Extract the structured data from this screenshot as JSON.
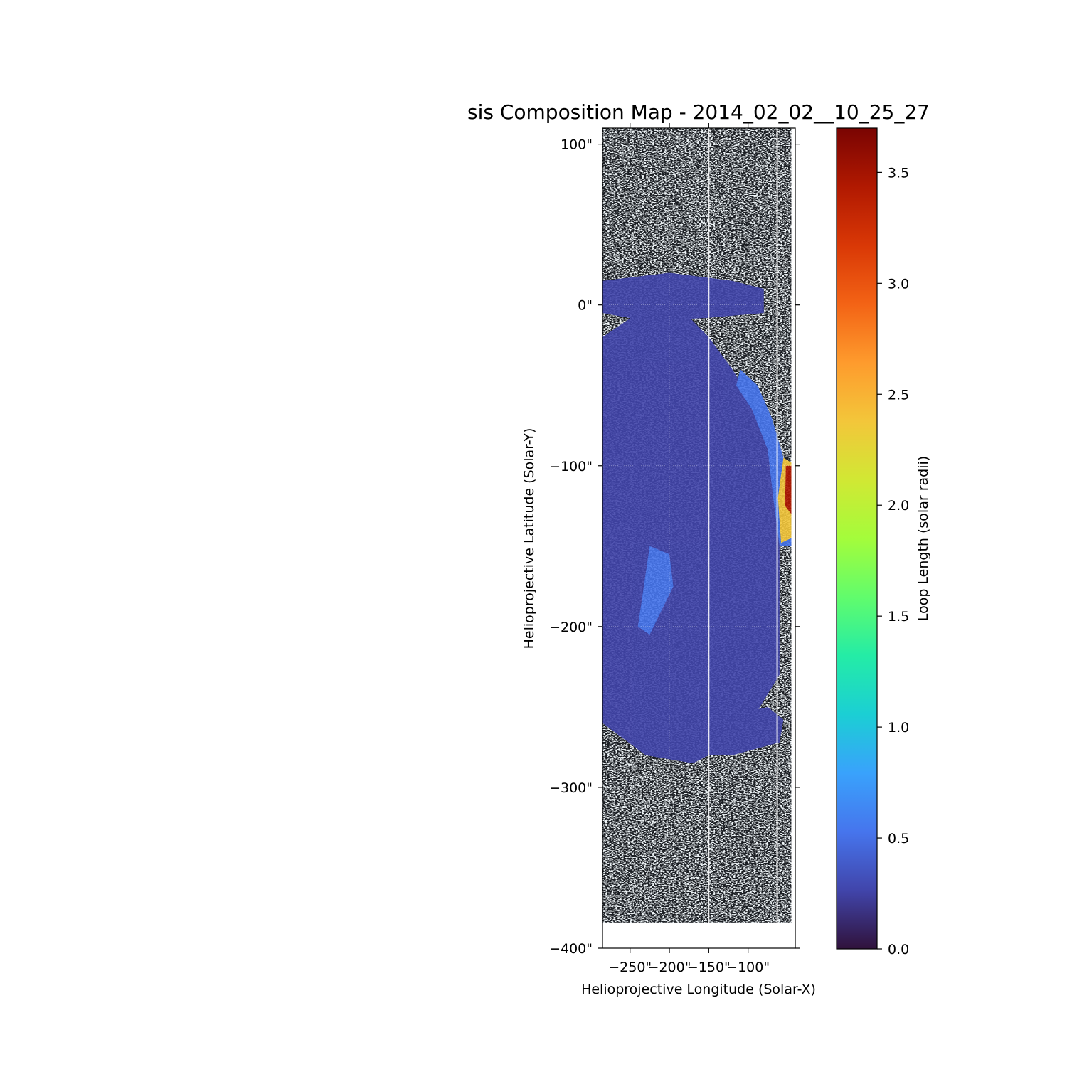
{
  "chart_data": {
    "type": "heatmap",
    "title": "sis Composition Map - 2014_02_02__10_25_27",
    "xlabel": "Helioprojective Longitude (Solar-X)",
    "ylabel": "Helioprojective Latitude (Solar-Y)",
    "xlim": [
      -285,
      -40
    ],
    "ylim": [
      -400,
      110
    ],
    "x_ticks": [
      {
        "value": -250,
        "label": "−250\""
      },
      {
        "value": -200,
        "label": "−200\""
      },
      {
        "value": -150,
        "label": "−150\""
      },
      {
        "value": -100,
        "label": "−100\""
      }
    ],
    "y_ticks": [
      {
        "value": 100,
        "label": "100\""
      },
      {
        "value": 0,
        "label": "0\""
      },
      {
        "value": -100,
        "label": "−100\""
      },
      {
        "value": -200,
        "label": "−200\""
      },
      {
        "value": -300,
        "label": "−300\""
      },
      {
        "value": -400,
        "label": "−400\""
      }
    ],
    "data_extent": {
      "x": [
        -285,
        -45
      ],
      "y": [
        -384,
        110
      ]
    },
    "grid": true,
    "background": "grayscale intensity image with column dropouts near x = -150 and x = -63",
    "colorbar": {
      "label": "Loop Length (solar radii)",
      "range": [
        0,
        3.7
      ],
      "colormap": "turbo",
      "ticks": [
        {
          "value": 0.0,
          "label": "0.0"
        },
        {
          "value": 0.5,
          "label": "0.5"
        },
        {
          "value": 1.0,
          "label": "1.0"
        },
        {
          "value": 1.5,
          "label": "1.5"
        },
        {
          "value": 2.0,
          "label": "2.0"
        },
        {
          "value": 2.5,
          "label": "2.5"
        },
        {
          "value": 3.0,
          "label": "3.0"
        },
        {
          "value": 3.5,
          "label": "3.5"
        }
      ],
      "stops": [
        "#30123b",
        "#4145ab",
        "#4675ed",
        "#39a2fc",
        "#1bcfd4",
        "#24eca6",
        "#61fc6c",
        "#a4fc3b",
        "#d1e834",
        "#f3c63a",
        "#fe9b2d",
        "#f36315",
        "#d93806",
        "#b11901",
        "#7a0402"
      ]
    },
    "overlay_regions": [
      {
        "name": "main-loop-region",
        "value": 0.15,
        "polygon": [
          [
            -285,
            -20
          ],
          [
            -240,
            -5
          ],
          [
            -180,
            -5
          ],
          [
            -150,
            -20
          ],
          [
            -120,
            -40
          ],
          [
            -95,
            -60
          ],
          [
            -75,
            -90
          ],
          [
            -60,
            -140
          ],
          [
            -60,
            -230
          ],
          [
            -110,
            -270
          ],
          [
            -170,
            -285
          ],
          [
            -230,
            -280
          ],
          [
            -285,
            -260
          ]
        ]
      },
      {
        "name": "northern-strip",
        "value": 0.25,
        "polygon": [
          [
            -285,
            15
          ],
          [
            -200,
            20
          ],
          [
            -120,
            15
          ],
          [
            -80,
            10
          ],
          [
            -80,
            -5
          ],
          [
            -150,
            -8
          ],
          [
            -230,
            -10
          ],
          [
            -285,
            -5
          ]
        ]
      },
      {
        "name": "right-edge-ribbon",
        "value": 0.6,
        "polygon": [
          [
            -110,
            -40
          ],
          [
            -88,
            -50
          ],
          [
            -70,
            -70
          ],
          [
            -55,
            -95
          ],
          [
            -45,
            -110
          ],
          [
            -45,
            -150
          ],
          [
            -60,
            -150
          ],
          [
            -68,
            -120
          ],
          [
            -75,
            -90
          ],
          [
            -95,
            -65
          ],
          [
            -115,
            -50
          ]
        ]
      },
      {
        "name": "southern-ribbon",
        "value": 0.4,
        "polygon": [
          [
            -225,
            -150
          ],
          [
            -200,
            -155
          ],
          [
            -195,
            -175
          ],
          [
            -225,
            -205
          ],
          [
            -240,
            -200
          ]
        ]
      },
      {
        "name": "southern-loops",
        "value": 0.35,
        "polygon": [
          [
            -170,
            -265
          ],
          [
            -120,
            -255
          ],
          [
            -75,
            -250
          ],
          [
            -55,
            -258
          ],
          [
            -60,
            -272
          ],
          [
            -120,
            -280
          ],
          [
            -170,
            -280
          ]
        ]
      },
      {
        "name": "loop-footpoint-hot",
        "value": 2.4,
        "polygon": [
          [
            -55,
            -95
          ],
          [
            -45,
            -98
          ],
          [
            -45,
            -145
          ],
          [
            -58,
            -148
          ],
          [
            -62,
            -120
          ]
        ]
      },
      {
        "name": "loop-footpoint-peak",
        "value": 3.5,
        "polygon": [
          [
            -52,
            -100
          ],
          [
            -45,
            -100
          ],
          [
            -45,
            -130
          ],
          [
            -53,
            -125
          ]
        ]
      }
    ]
  }
}
